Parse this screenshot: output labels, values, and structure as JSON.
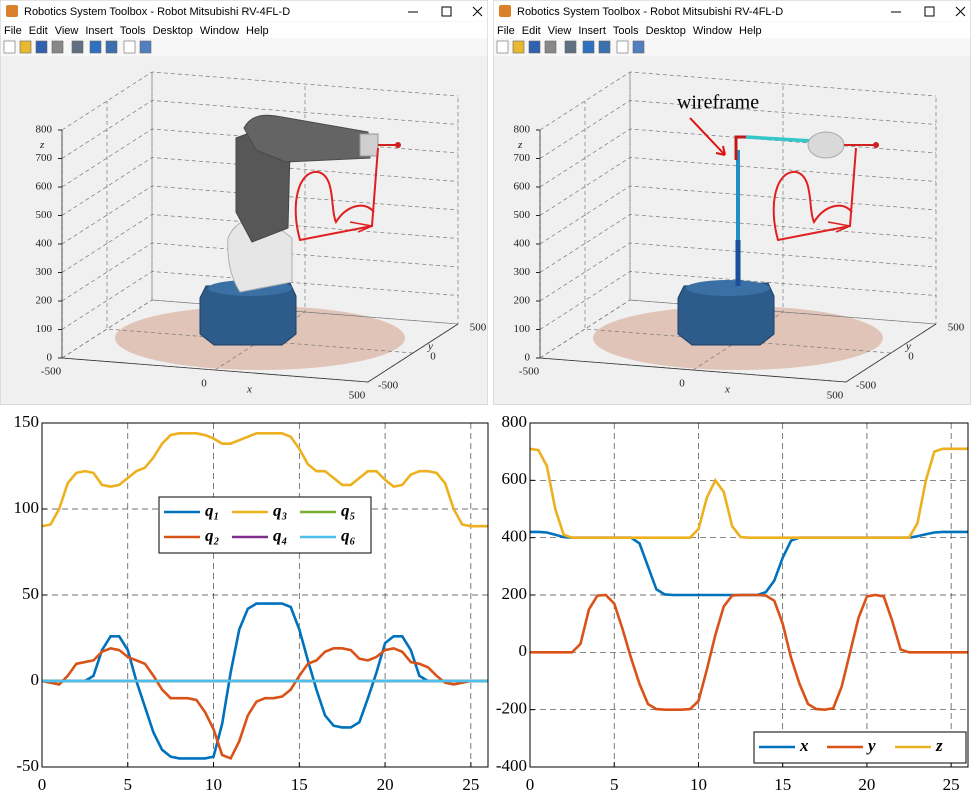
{
  "windows": [
    {
      "title": "Robotics System Toolbox - Robot Mitsubishi RV-4FL-D"
    },
    {
      "title": "Robotics System Toolbox - Robot Mitsubishi RV-4FL-D",
      "annotation": "wireframe"
    }
  ],
  "menu": [
    "File",
    "Edit",
    "View",
    "Insert",
    "Tools",
    "Desktop",
    "Window",
    "Help"
  ],
  "axes3d": {
    "xlabel": "x",
    "ylabel": "y",
    "zlabel": "z",
    "xlim": [
      -500,
      500
    ],
    "ylim": [
      -500,
      500
    ],
    "zlim": [
      0,
      800
    ],
    "xticks": [
      -500,
      0,
      500
    ],
    "yticks": [
      -500,
      0,
      500
    ],
    "zticks": [
      0,
      100,
      200,
      300,
      400,
      500,
      600,
      700,
      800
    ]
  },
  "chart_data": [
    {
      "type": "line",
      "legend": "upper center",
      "grid": true,
      "xlim": [
        0,
        26
      ],
      "ylim": [
        -50,
        150
      ],
      "xticks": [
        0,
        5,
        10,
        15,
        20,
        25
      ],
      "yticks": [
        -50,
        0,
        50,
        100,
        150
      ],
      "x": [
        0,
        0.5,
        1,
        1.5,
        2,
        2.5,
        3,
        3.5,
        4,
        4.5,
        5,
        5.5,
        6,
        6.5,
        7,
        7.5,
        8,
        8.5,
        9,
        9.5,
        10,
        10.5,
        11,
        11.5,
        12,
        12.5,
        13,
        13.5,
        14,
        14.5,
        15,
        15.5,
        16,
        16.5,
        17,
        17.5,
        18,
        18.5,
        19,
        19.5,
        20,
        20.5,
        21,
        21.5,
        22,
        22.5,
        23,
        23.5,
        24,
        24.5,
        25,
        25.5,
        26
      ],
      "series": [
        {
          "name": "q₁",
          "color": "#0072bd",
          "values": [
            0,
            0,
            0,
            0,
            0,
            0,
            3,
            18,
            26,
            26,
            18,
            0,
            -15,
            -30,
            -40,
            -44,
            -45,
            -45,
            -45,
            -45,
            -44,
            -25,
            5,
            30,
            42,
            45,
            45,
            45,
            45,
            43,
            30,
            12,
            -5,
            -20,
            -26,
            -27,
            -27,
            -24,
            -10,
            5,
            22,
            26,
            26,
            18,
            3,
            0,
            0,
            0,
            0,
            0,
            0,
            0,
            0
          ]
        },
        {
          "name": "q₂",
          "color": "#d95319",
          "values": [
            0,
            -1,
            -2,
            3,
            10,
            11,
            12,
            17,
            19,
            18,
            14,
            12,
            10,
            3,
            -5,
            -10,
            -10,
            -10,
            -11,
            -18,
            -28,
            -43,
            -45,
            -35,
            -20,
            -12,
            -10,
            -10,
            -9,
            -5,
            3,
            10,
            12,
            17,
            19,
            19,
            18,
            13,
            12,
            14,
            18,
            19,
            17,
            11,
            10,
            8,
            3,
            -1,
            -2,
            -1,
            0,
            0,
            0
          ]
        },
        {
          "name": "q₃",
          "color": "#edb120",
          "values": [
            90,
            91,
            100,
            115,
            121,
            122,
            121,
            114,
            113,
            114,
            118,
            122,
            124,
            130,
            138,
            143,
            144,
            144,
            144,
            143,
            141,
            138,
            138,
            140,
            142,
            144,
            144,
            144,
            144,
            142,
            135,
            126,
            122,
            122,
            118,
            114,
            114,
            118,
            122,
            122,
            117,
            113,
            114,
            120,
            122,
            122,
            121,
            115,
            100,
            91,
            90,
            90,
            90
          ]
        },
        {
          "name": "q₄",
          "color": "#7e2f8e",
          "values": [
            0,
            0,
            0,
            0,
            0,
            0,
            0,
            0,
            0,
            0,
            0,
            0,
            0,
            0,
            0,
            0,
            0,
            0,
            0,
            0,
            0,
            0,
            0,
            0,
            0,
            0,
            0,
            0,
            0,
            0,
            0,
            0,
            0,
            0,
            0,
            0,
            0,
            0,
            0,
            0,
            0,
            0,
            0,
            0,
            0,
            0,
            0,
            0,
            0,
            0,
            0,
            0,
            0
          ]
        },
        {
          "name": "q₅",
          "color": "#77ac30",
          "values": [
            0,
            0,
            0,
            0,
            0,
            0,
            0,
            0,
            0,
            0,
            0,
            0,
            0,
            0,
            0,
            0,
            0,
            0,
            0,
            0,
            0,
            0,
            0,
            0,
            0,
            0,
            0,
            0,
            0,
            0,
            0,
            0,
            0,
            0,
            0,
            0,
            0,
            0,
            0,
            0,
            0,
            0,
            0,
            0,
            0,
            0,
            0,
            0,
            0,
            0,
            0,
            0,
            0
          ]
        },
        {
          "name": "q₆",
          "color": "#4dbeee",
          "values": [
            0,
            0,
            0,
            0,
            0,
            0,
            0,
            0,
            0,
            0,
            0,
            0,
            0,
            0,
            0,
            0,
            0,
            0,
            0,
            0,
            0,
            0,
            0,
            0,
            0,
            0,
            0,
            0,
            0,
            0,
            0,
            0,
            0,
            0,
            0,
            0,
            0,
            0,
            0,
            0,
            0,
            0,
            0,
            0,
            0,
            0,
            0,
            0,
            0,
            0,
            0,
            0,
            0
          ]
        }
      ]
    },
    {
      "type": "line",
      "legend": "lower right",
      "grid": true,
      "xlim": [
        0,
        26
      ],
      "ylim": [
        -400,
        800
      ],
      "xticks": [
        0,
        5,
        10,
        15,
        20,
        25
      ],
      "yticks": [
        -400,
        -200,
        0,
        200,
        400,
        600,
        800
      ],
      "x": [
        0,
        0.5,
        1,
        1.5,
        2,
        2.5,
        3,
        3.5,
        4,
        4.5,
        5,
        5.5,
        6,
        6.5,
        7,
        7.5,
        8,
        8.5,
        9,
        9.5,
        10,
        10.5,
        11,
        11.5,
        12,
        12.5,
        13,
        13.5,
        14,
        14.5,
        15,
        15.5,
        16,
        16.5,
        17,
        17.5,
        18,
        18.5,
        19,
        19.5,
        20,
        20.5,
        21,
        21.5,
        22,
        22.5,
        23,
        23.5,
        24,
        24.5,
        25,
        25.5,
        26
      ],
      "series": [
        {
          "name": "x",
          "color": "#0072bd",
          "values": [
            420,
            420,
            418,
            410,
            402,
            400,
            400,
            400,
            400,
            400,
            400,
            400,
            400,
            380,
            300,
            220,
            202,
            200,
            200,
            200,
            200,
            200,
            200,
            200,
            200,
            200,
            200,
            200,
            210,
            250,
            330,
            390,
            400,
            400,
            400,
            400,
            400,
            400,
            400,
            400,
            400,
            400,
            400,
            400,
            400,
            400,
            405,
            412,
            418,
            420,
            420,
            420,
            420
          ]
        },
        {
          "name": "y",
          "color": "#d95319",
          "values": [
            0,
            0,
            0,
            0,
            0,
            0,
            30,
            150,
            198,
            200,
            170,
            80,
            -20,
            -110,
            -180,
            -198,
            -200,
            -200,
            -200,
            -198,
            -170,
            -60,
            60,
            160,
            198,
            200,
            200,
            200,
            198,
            180,
            100,
            -20,
            -110,
            -180,
            -198,
            -200,
            -195,
            -120,
            0,
            120,
            195,
            200,
            195,
            110,
            10,
            0,
            0,
            0,
            0,
            0,
            0,
            0,
            0
          ]
        },
        {
          "name": "z",
          "color": "#edb120",
          "values": [
            710,
            705,
            650,
            500,
            410,
            400,
            400,
            400,
            400,
            400,
            400,
            400,
            400,
            400,
            400,
            400,
            400,
            400,
            400,
            400,
            430,
            540,
            600,
            560,
            440,
            402,
            400,
            400,
            400,
            400,
            400,
            400,
            400,
            400,
            400,
            400,
            400,
            400,
            400,
            400,
            400,
            400,
            400,
            400,
            400,
            400,
            450,
            600,
            700,
            710,
            710,
            710,
            710
          ]
        }
      ]
    }
  ]
}
